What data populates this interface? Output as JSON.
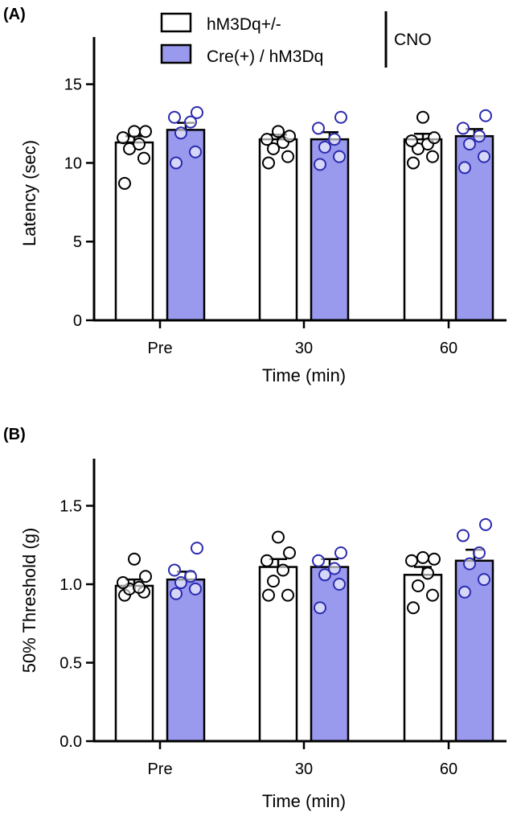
{
  "colors": {
    "control_fill": "#ffffff",
    "treated_fill": "#9999ee",
    "treated_point": "#2b2bb0",
    "control_point": "#000000",
    "axis": "#000000"
  },
  "legend": {
    "items": [
      {
        "label": "hM3Dq+/-",
        "color": "#ffffff"
      },
      {
        "label": "Cre(+) / hM3Dq",
        "color": "#9999ee"
      }
    ],
    "bracket_label": "CNO"
  },
  "chart_data": [
    {
      "panel_label": "(A)",
      "type": "bar",
      "categories": [
        "Pre",
        "30",
        "60"
      ],
      "xlabel": "Time (min)",
      "ylabel": "Latency (sec)",
      "ylim": [
        0,
        18
      ],
      "yticks": [
        "0",
        "5",
        "10",
        "15"
      ],
      "series": [
        {
          "name": "hM3Dq+/-",
          "values": [
            11.3,
            11.5,
            11.5
          ],
          "errors": [
            0.4,
            0.3,
            0.35
          ],
          "points": [
            [
              8.7,
              10.3,
              10.9,
              11.2,
              11.6,
              12.0,
              12.0
            ],
            [
              10.0,
              10.4,
              10.9,
              11.3,
              11.5,
              11.7,
              12.0
            ],
            [
              10.0,
              10.4,
              10.9,
              11.2,
              11.4,
              11.6,
              12.9
            ]
          ]
        },
        {
          "name": "Cre(+) / hM3Dq",
          "values": [
            12.1,
            11.5,
            11.7
          ],
          "errors": [
            0.45,
            0.45,
            0.45
          ],
          "points": [
            [
              10.0,
              10.7,
              11.9,
              12.6,
              12.9,
              13.2
            ],
            [
              9.9,
              10.4,
              11.0,
              11.5,
              12.2,
              12.9
            ],
            [
              9.7,
              10.4,
              11.2,
              11.7,
              12.2,
              13.0
            ]
          ]
        }
      ]
    },
    {
      "panel_label": "(B)",
      "type": "bar",
      "categories": [
        "Pre",
        "30",
        "60"
      ],
      "xlabel": "Time (min)",
      "ylabel": "50% Threshold (g)",
      "ylim": [
        0,
        1.8
      ],
      "yticks": [
        "0.0",
        "0.5",
        "1.0",
        "1.5"
      ],
      "series": [
        {
          "name": "hM3Dq+/-",
          "values": [
            0.99,
            1.11,
            1.06
          ],
          "errors": [
            0.04,
            0.05,
            0.05
          ],
          "points": [
            [
              0.93,
              0.95,
              0.97,
              0.98,
              1.01,
              1.05,
              1.16
            ],
            [
              0.93,
              0.93,
              1.02,
              1.09,
              1.15,
              1.2,
              1.3
            ],
            [
              0.85,
              0.93,
              0.99,
              1.07,
              1.15,
              1.16,
              1.17
            ]
          ]
        },
        {
          "name": "Cre(+) / hM3Dq",
          "values": [
            1.03,
            1.11,
            1.15
          ],
          "errors": [
            0.05,
            0.05,
            0.07
          ],
          "points": [
            [
              0.94,
              0.97,
              1.01,
              1.05,
              1.09,
              1.23
            ],
            [
              0.85,
              1.0,
              1.06,
              1.1,
              1.15,
              1.2
            ],
            [
              0.95,
              1.03,
              1.13,
              1.2,
              1.31,
              1.38
            ]
          ]
        }
      ]
    }
  ]
}
